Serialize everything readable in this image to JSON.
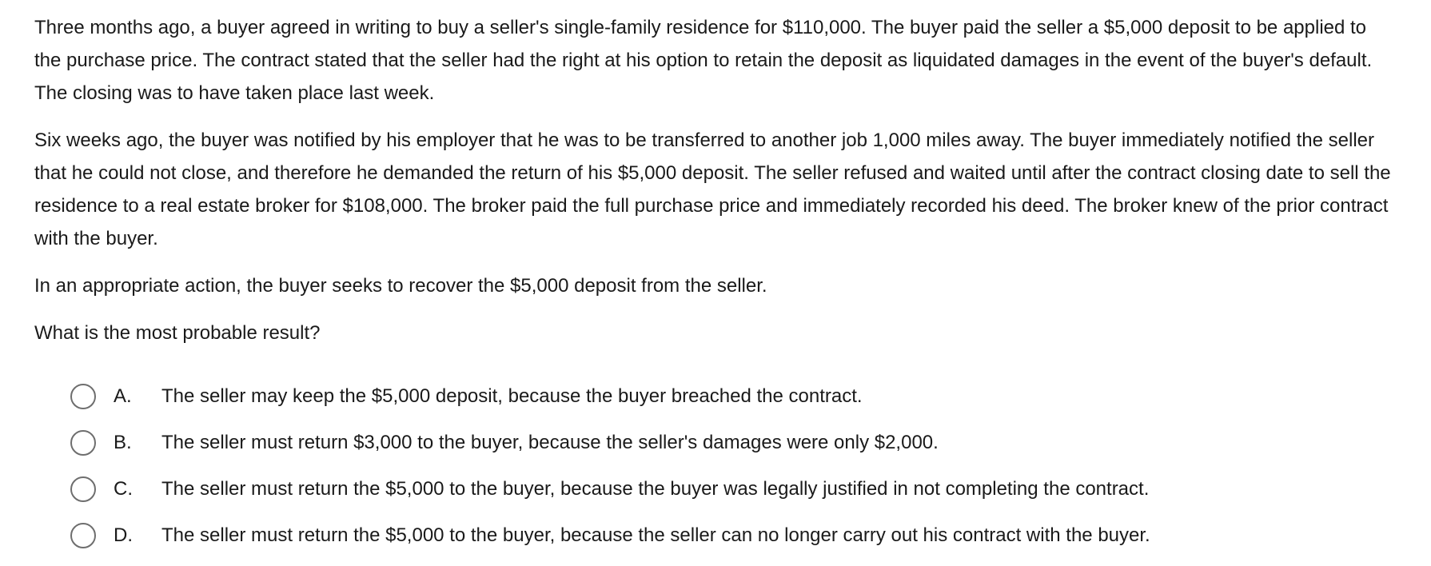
{
  "question": {
    "paragraphs": [
      "Three months ago, a buyer agreed in writing to buy a seller's single-family residence for $110,000.  The buyer paid the seller a $5,000 deposit to be applied to the purchase price.  The contract stated that the seller had the right at his option to retain the deposit as liquidated damages in the event of the buyer's default.  The closing was to have taken place last week.",
      "Six weeks ago, the buyer was notified by his employer that he was to be transferred to another job 1,000 miles away.  The buyer immediately notified the seller that he could not close, and therefore he demanded the return of his $5,000 deposit.  The seller refused and waited until after the contract closing date to sell the residence to a real estate broker for $108,000.  The broker paid the full purchase price and immediately recorded his deed.  The broker knew of the prior contract with the buyer.",
      "In an appropriate action, the buyer seeks to recover the $5,000 deposit from the seller.",
      "What is the most probable result?"
    ]
  },
  "options": [
    {
      "letter": "A.",
      "text": "The seller may keep the $5,000 deposit, because the buyer breached the contract."
    },
    {
      "letter": "B.",
      "text": "The seller must return $3,000 to the buyer, because the seller's damages were only $2,000."
    },
    {
      "letter": "C.",
      "text": "The seller must return the $5,000 to the buyer, because the buyer was legally justified in not completing the contract."
    },
    {
      "letter": "D.",
      "text": "The seller must return the $5,000 to the buyer, because the seller can no longer carry out his contract with the buyer."
    }
  ]
}
